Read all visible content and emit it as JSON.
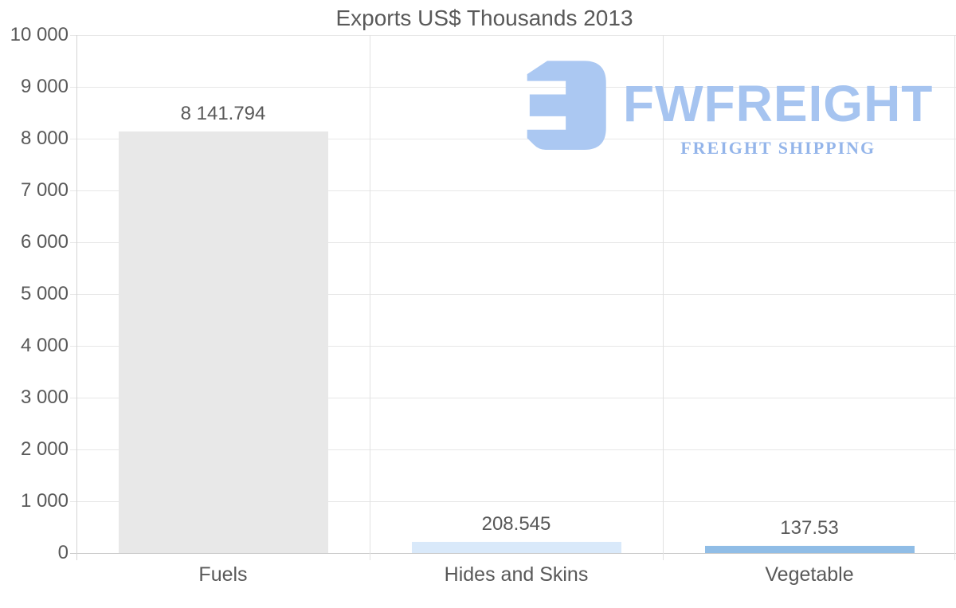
{
  "chart_data": {
    "type": "bar",
    "title": "Exports US$ Thousands 2013",
    "categories": [
      "Fuels",
      "Hides and Skins",
      "Vegetable"
    ],
    "values": [
      8141.794,
      208.545,
      137.53
    ],
    "value_labels": [
      "8 141.794",
      "208.545",
      "137.53"
    ],
    "bar_colors": [
      "#e8e8e8",
      "#d9e9fa",
      "#90bde6"
    ],
    "xlabel": "",
    "ylabel": "",
    "ylim": [
      0,
      10000
    ],
    "ytick_step": 1000,
    "ytick_labels": [
      "0",
      "1 000",
      "2 000",
      "3 000",
      "4 000",
      "5 000",
      "6 000",
      "7 000",
      "8 000",
      "9 000",
      "10 000"
    ],
    "grid": "horizontal gridlines with vertical category separators",
    "legend": "none"
  },
  "watermark": {
    "brand": "FWFREIGHT",
    "tagline": "FREIGHT SHIPPING",
    "logo_icon": "fwfreight-logo-icon",
    "logo_color": "#abc8f2",
    "brand_color": "#a6c4f0",
    "tagline_color": "#94b5ea"
  },
  "colors": {
    "text": "#595959",
    "gridline": "#e7e7e7",
    "baseline": "#c8c8c8",
    "axis_line": "#d4d4d4",
    "separator": "#e2e2e2"
  }
}
